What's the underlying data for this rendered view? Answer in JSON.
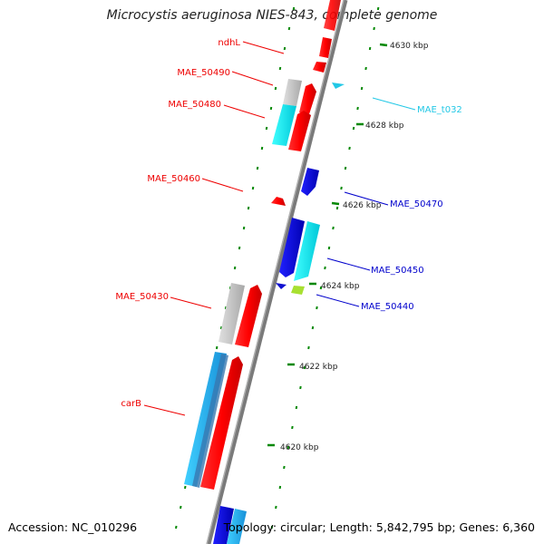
{
  "title": "Microcystis aeruginosa NIES-843, complete genome",
  "footer": {
    "accession": "Accession: NC_010296",
    "topology": "Topology: circular; Length: 5,842,795 bp; Genes: 6,360"
  },
  "colors": {
    "forward_cds": "#ff0000",
    "reverse_cds": "#0000ee",
    "rna": "#22c8e6",
    "pseudo_gray": "#c0c0c0",
    "cyan_gene": "#00e8e8",
    "tick": "#008800",
    "backbone": "#808080"
  },
  "ticks": [
    "4630 kbp",
    "4628 kbp",
    "4626 kbp",
    "4624 kbp",
    "4622 kbp",
    "4620 kbp"
  ],
  "gene_labels": [
    {
      "name": "ndhL",
      "color": "#ee0000"
    },
    {
      "name": "MAE_50490",
      "color": "#ee0000"
    },
    {
      "name": "MAE_50480",
      "color": "#ee0000"
    },
    {
      "name": "MAE_50460",
      "color": "#ee0000"
    },
    {
      "name": "MAE_50430",
      "color": "#ee0000"
    },
    {
      "name": "carB",
      "color": "#ee0000"
    },
    {
      "name": "MAE_t032",
      "color": "#22c8e6"
    },
    {
      "name": "MAE_50470",
      "color": "#0000cc"
    },
    {
      "name": "MAE_50450",
      "color": "#0000cc"
    },
    {
      "name": "MAE_50440",
      "color": "#0000cc"
    }
  ]
}
